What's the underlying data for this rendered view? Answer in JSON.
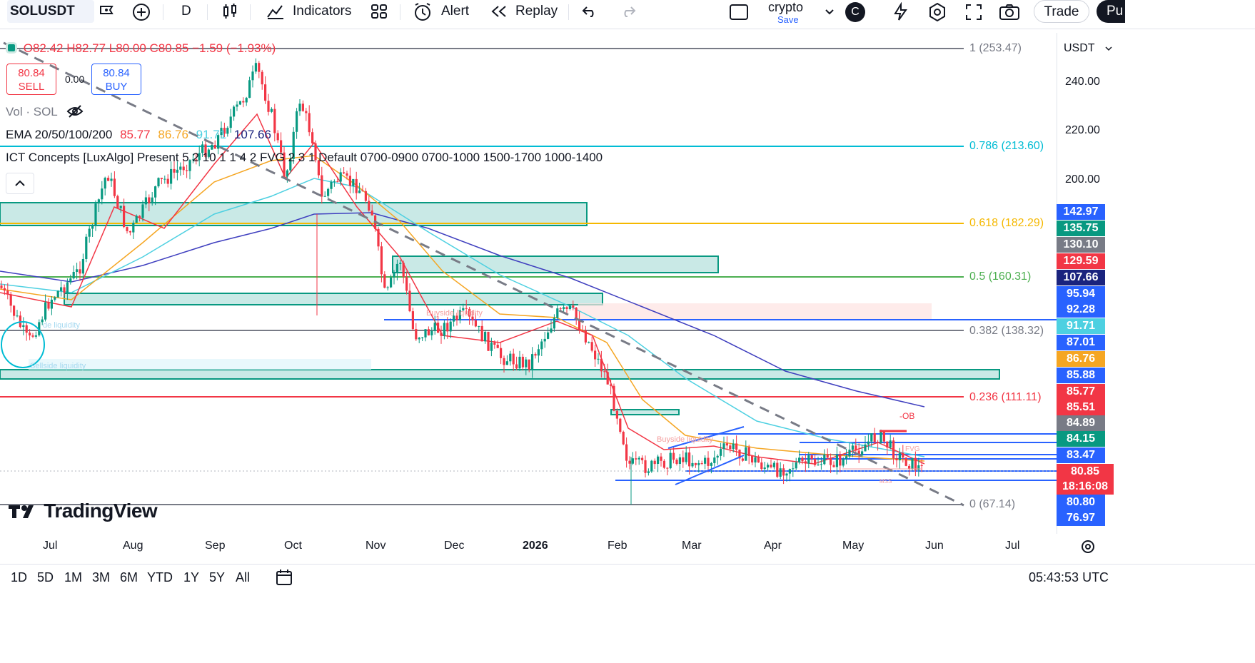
{
  "toolbar": {
    "symbol": "SOLUSDT",
    "interval": "D",
    "indicators_label": "Indicators",
    "alert_label": "Alert",
    "replay_label": "Replay",
    "layout_name": "crypto",
    "layout_save": "Save",
    "user_initial": "C",
    "trade_label": "Trade",
    "publish_partial": "Pu"
  },
  "legend": {
    "ohlc_o": "O82.42",
    "ohlc_h": "H82.77",
    "ohlc_l": "L80.00",
    "ohlc_c": "C80.85",
    "ohlc_change": "−1.59 (−1.93%)",
    "sell_price": "80.84",
    "sell_label": "SELL",
    "spread": "0.00",
    "buy_price": "80.84",
    "buy_label": "BUY",
    "vol_label": "Vol · SOL",
    "ema_label": "EMA 20/50/100/200",
    "ema_values": [
      "85.77",
      "86.76",
      "91.71",
      "107.66"
    ],
    "ict_label": "ICT Concepts [LuxAlgo] Present 5 2 10 1 1 4 2 FVG 2 3 1 Default 0700-0900 0700-1000 1500-1700 1000-1400"
  },
  "colors": {
    "up": "#089981",
    "down": "#f23645",
    "ema20": "#f23645",
    "ema50": "#f5a623",
    "ema100": "#4dd0e1",
    "ema200": "#3f3fbf",
    "fib_786": "#00bcd4",
    "fib_618": "#f5b800",
    "fib_05": "#4caf50",
    "fib_382": "#787b86",
    "fib_236": "#f23645",
    "fib_0": "#787b86",
    "hline": "#2962ff"
  },
  "fib_levels": [
    {
      "label": "1 (253.47)"
    },
    {
      "label": "0.786 (213.60)"
    },
    {
      "label": "0.618 (182.29)"
    },
    {
      "label": "0.5 (160.31)"
    },
    {
      "label": "0.382 (138.32)"
    },
    {
      "label": "0.236 (111.11)"
    },
    {
      "label": "0 (67.14)"
    }
  ],
  "annotations": {
    "buyside_1": "Buyside liquidity",
    "buyside_2": "Buyside liquidity",
    "sellside": "Sellside liquidity",
    "sellside_partial": "de liquidity",
    "ob": "-OB",
    "fvg": "FVG",
    "mss": "MSS"
  },
  "price_axis": {
    "currency": "USDT",
    "ticks": [
      "240.00",
      "220.00",
      "200.00"
    ],
    "labels": [
      {
        "value": "142.97",
        "color": "#2962ff"
      },
      {
        "value": "135.75",
        "color": "#089981"
      },
      {
        "value": "130.10",
        "color": "#787b86"
      },
      {
        "value": "129.59",
        "color": "#f23645"
      },
      {
        "value": "107.66",
        "color": "#1a237e"
      },
      {
        "value": "95.94",
        "color": "#2962ff"
      },
      {
        "value": "92.28",
        "color": "#2962ff"
      },
      {
        "value": "91.71",
        "color": "#4dd0e1"
      },
      {
        "value": "87.01",
        "color": "#2962ff"
      },
      {
        "value": "86.76",
        "color": "#f5a623"
      },
      {
        "value": "85.88",
        "color": "#2962ff"
      },
      {
        "value": "85.77",
        "color": "#f23645"
      },
      {
        "value": "85.51",
        "color": "#f23645"
      },
      {
        "value": "84.89",
        "color": "#787b86"
      },
      {
        "value": "84.15",
        "color": "#089981"
      },
      {
        "value": "83.47",
        "color": "#2962ff"
      },
      {
        "value": "80.85",
        "color": "#f23645"
      },
      {
        "value": "18:16:08",
        "color": "#f23645"
      },
      {
        "value": "80.80",
        "color": "#2962ff"
      },
      {
        "value": "76.97",
        "color": "#2962ff"
      }
    ]
  },
  "time_axis": [
    "Jul",
    "Aug",
    "Sep",
    "Oct",
    "Nov",
    "Dec",
    "2026",
    "Feb",
    "Mar",
    "Apr",
    "May",
    "Jun",
    "Jul"
  ],
  "ranges": [
    "1D",
    "5D",
    "1M",
    "3M",
    "6M",
    "YTD",
    "1Y",
    "5Y",
    "All"
  ],
  "clock": "05:43:53 UTC",
  "watermark": "TradingView"
}
